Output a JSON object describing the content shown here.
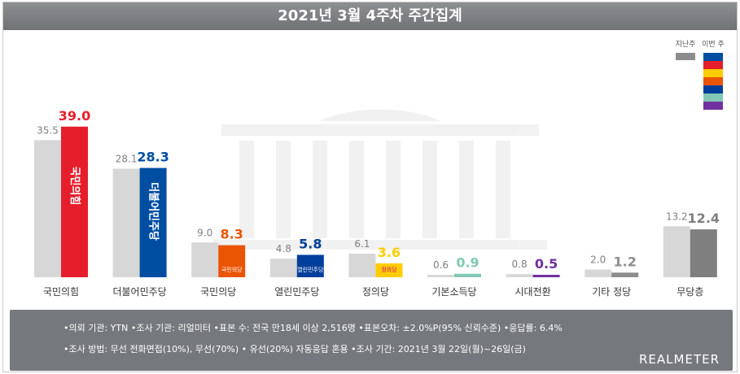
{
  "header": {
    "title": "2021년 3월 4주차 주간집계"
  },
  "legend": {
    "last_week": "지난주",
    "this_week": "이번 주"
  },
  "chart_data": {
    "type": "bar",
    "title": "2021년 3월 4주차 주간집계",
    "categories": [
      "국민의힘",
      "더불어민주당",
      "국민의당",
      "열린민주당",
      "정의당",
      "기본소득당",
      "시대전환",
      "기타 정당",
      "무당층"
    ],
    "series": [
      {
        "name": "지난주",
        "values": [
          35.5,
          28.1,
          9.0,
          4.8,
          6.1,
          0.6,
          0.8,
          2.0,
          13.2
        ]
      },
      {
        "name": "이번 주",
        "values": [
          39.0,
          28.3,
          8.3,
          5.8,
          3.6,
          0.9,
          0.5,
          1.2,
          12.4
        ]
      }
    ],
    "party_marks": [
      "국민의힘",
      "더불어민주당",
      "국민의당",
      "열린민주당",
      "정의당"
    ],
    "colors": {
      "last_week": "#d7d7d7",
      "this_week": [
        "#e61e2b",
        "#004ea2",
        "#ea5504",
        "#003e9b",
        "#ffcc00",
        "#82c8b4",
        "#7030a0",
        "#8c8c8c",
        "#7f7f7f"
      ],
      "this_week_label": [
        "#e61e2b",
        "#004ea2",
        "#ea5504",
        "#003e9b",
        "#ffcc00",
        "#82c8b4",
        "#7030a0",
        "#8c8c8c",
        "#7f7f7f"
      ],
      "legend_swatches": [
        "#004ea2",
        "#e61e2b",
        "#ffcc00",
        "#ea5504",
        "#003e9b",
        "#82c8b4",
        "#7030a0"
      ]
    },
    "grid": false,
    "legend_position": "top-right"
  },
  "footer": {
    "line1": "•의뢰 기관: YTN •조사 기관: 리얼미터 •표본 수: 전국 만18세 이상 2,516명 •표본오차: ±2.0%P(95% 신뢰수준) •응답률: 6.4%",
    "line2": "•조사 방법: 무선 전화면접(10%), 무선(70%) • 유선(20%) 자동응답 혼용 •조사 기간: 2021년 3월 22일(월)~26일(금)",
    "brand": "REALMETER"
  }
}
